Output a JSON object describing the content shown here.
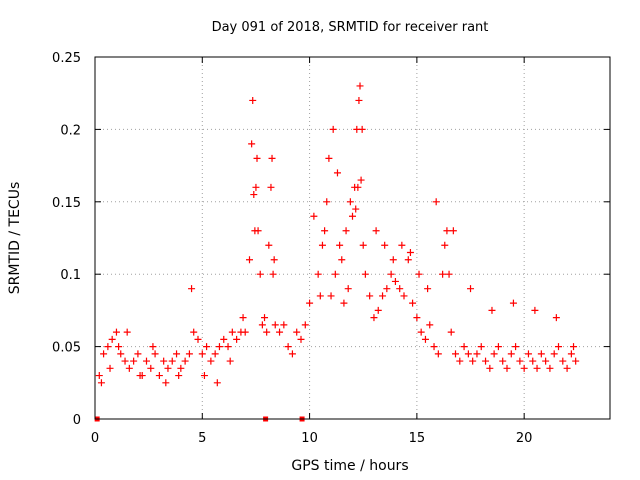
{
  "chart_data": {
    "type": "scatter",
    "title": "Day 091 of 2018, SRMTID for receiver rant",
    "xlabel": "GPS time / hours",
    "ylabel": "SRMTID / TECUs",
    "xlim": [
      0,
      24
    ],
    "ylim": [
      0,
      0.25
    ],
    "x_ticks": [
      0,
      5,
      10,
      15,
      20
    ],
    "x_tick_labels": [
      "0",
      "5",
      "10",
      "15",
      "20"
    ],
    "y_ticks": [
      0,
      0.05,
      0.1,
      0.15,
      0.2,
      0.25
    ],
    "y_tick_labels": [
      "0",
      "0.05",
      "0.1",
      "0.15",
      "0.2",
      "0.25"
    ],
    "grid": true,
    "marker": "plus",
    "color": "#ff0000",
    "series": [
      {
        "name": "SRMTID",
        "x": [
          0.2,
          0.4,
          0.6,
          0.8,
          1.0,
          1.2,
          1.4,
          1.6,
          1.8,
          2.0,
          2.2,
          2.4,
          2.6,
          2.8,
          3.0,
          3.2,
          3.4,
          3.6,
          3.8,
          4.0,
          4.2,
          4.4,
          4.6,
          4.8,
          5.0,
          5.2,
          5.4,
          5.6,
          5.8,
          6.0,
          6.2,
          6.4,
          6.6,
          6.8,
          7.0,
          7.2,
          7.3,
          7.4,
          7.5,
          7.6,
          7.7,
          7.8,
          7.9,
          8.0,
          8.1,
          8.2,
          8.3,
          8.4,
          8.6,
          8.8,
          9.0,
          9.2,
          9.4,
          9.6,
          9.8,
          10.0,
          10.2,
          10.4,
          10.5,
          10.6,
          10.8,
          11.0,
          11.2,
          11.4,
          11.6,
          11.8,
          12.0,
          12.1,
          12.2,
          12.3,
          12.4,
          12.5,
          12.6,
          12.8,
          13.0,
          13.2,
          13.4,
          13.6,
          13.8,
          14.0,
          14.2,
          14.4,
          14.6,
          14.8,
          15.0,
          15.2,
          15.4,
          15.6,
          15.8,
          16.0,
          16.2,
          16.4,
          16.6,
          16.8,
          17.0,
          17.2,
          17.4,
          17.6,
          17.8,
          18.0,
          18.2,
          18.4,
          18.6,
          18.8,
          19.0,
          19.2,
          19.4,
          19.6,
          19.8,
          20.0,
          20.2,
          20.4,
          20.6,
          20.8,
          21.0,
          21.2,
          21.4,
          21.6,
          21.8,
          22.0,
          22.2,
          22.4,
          0.3,
          0.7,
          1.1,
          1.5,
          2.1,
          2.7,
          3.3,
          3.9,
          4.5,
          5.1,
          5.7,
          6.3,
          6.9,
          7.35,
          7.45,
          7.55,
          8.25,
          8.35,
          10.7,
          10.9,
          11.1,
          11.3,
          11.5,
          11.7,
          11.9,
          12.15,
          12.25,
          12.35,
          12.45,
          13.1,
          13.5,
          13.9,
          14.3,
          14.7,
          15.1,
          15.5,
          15.9,
          16.3,
          16.5,
          16.7,
          17.5,
          18.5,
          19.5,
          20.5,
          21.5,
          22.3
        ],
        "y": [
          0.03,
          0.045,
          0.05,
          0.055,
          0.06,
          0.045,
          0.04,
          0.035,
          0.04,
          0.045,
          0.03,
          0.04,
          0.035,
          0.045,
          0.03,
          0.04,
          0.035,
          0.04,
          0.045,
          0.035,
          0.04,
          0.045,
          0.06,
          0.055,
          0.045,
          0.05,
          0.04,
          0.045,
          0.05,
          0.055,
          0.05,
          0.06,
          0.055,
          0.06,
          0.06,
          0.11,
          0.19,
          0.155,
          0.16,
          0.13,
          0.1,
          0.065,
          0.07,
          0.06,
          0.12,
          0.16,
          0.1,
          0.065,
          0.06,
          0.065,
          0.05,
          0.045,
          0.06,
          0.055,
          0.065,
          0.08,
          0.14,
          0.1,
          0.085,
          0.12,
          0.15,
          0.085,
          0.1,
          0.12,
          0.08,
          0.09,
          0.14,
          0.16,
          0.2,
          0.22,
          0.165,
          0.12,
          0.1,
          0.085,
          0.07,
          0.075,
          0.085,
          0.09,
          0.1,
          0.095,
          0.09,
          0.085,
          0.11,
          0.08,
          0.07,
          0.06,
          0.055,
          0.065,
          0.05,
          0.045,
          0.1,
          0.13,
          0.06,
          0.045,
          0.04,
          0.05,
          0.045,
          0.04,
          0.045,
          0.05,
          0.04,
          0.035,
          0.045,
          0.05,
          0.04,
          0.035,
          0.045,
          0.05,
          0.04,
          0.035,
          0.045,
          0.04,
          0.035,
          0.045,
          0.04,
          0.035,
          0.045,
          0.05,
          0.04,
          0.035,
          0.045,
          0.04,
          0.025,
          0.035,
          0.05,
          0.06,
          0.03,
          0.05,
          0.025,
          0.03,
          0.09,
          0.03,
          0.025,
          0.04,
          0.07,
          0.22,
          0.13,
          0.18,
          0.18,
          0.11,
          0.13,
          0.18,
          0.2,
          0.17,
          0.11,
          0.13,
          0.15,
          0.145,
          0.16,
          0.23,
          0.2,
          0.13,
          0.12,
          0.11,
          0.12,
          0.115,
          0.1,
          0.09,
          0.15,
          0.12,
          0.1,
          0.13,
          0.09,
          0.075,
          0.08,
          0.075,
          0.07,
          0.05
        ],
        "data_gaps_x": [
          0.1,
          7.95,
          9.65
        ]
      }
    ]
  }
}
